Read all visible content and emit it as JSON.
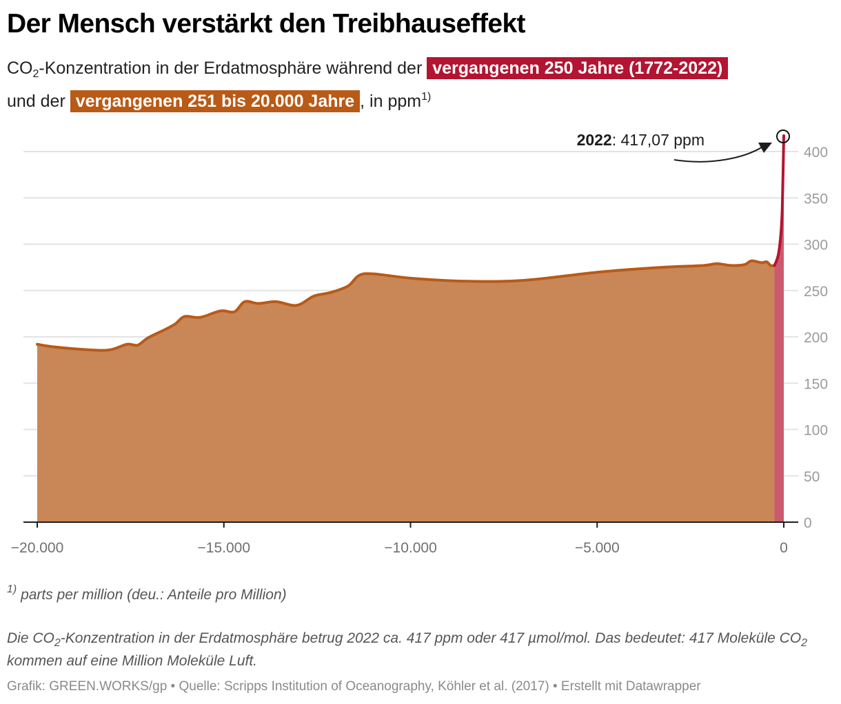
{
  "header": {
    "title": "Der Mensch verstärkt den Treibhauseffekt",
    "subtitle_line1_prefix": "CO",
    "subtitle_line1_sub": "2",
    "subtitle_line1_middle": "-Konzentration in der Erdatmosphäre während der ",
    "subtitle_highlight_red": "vergangenen 250 Jahre (1772-2022)",
    "subtitle_line2_prefix": "und der ",
    "subtitle_highlight_orange": "vergangenen 251 bis 20.000 Jahre",
    "subtitle_line2_suffix": ", in ppm",
    "subtitle_line2_sup": "1)"
  },
  "colors": {
    "recent_line": "#b31432",
    "recent_fill": "#cc5a6e",
    "historic_line": "#b95a17",
    "historic_fill": "#c98757",
    "grid": "#e3e3e3",
    "axis": "#1d1d1d"
  },
  "annotation": {
    "year": "2022",
    "text": ": 417,07 ppm"
  },
  "axes": {
    "y_ticks": [
      "0",
      "50",
      "100",
      "150",
      "200",
      "250",
      "300",
      "350",
      "400"
    ],
    "x_ticks": [
      "−20.000",
      "−15.000",
      "−10.000",
      "−5.000",
      "0"
    ]
  },
  "chart_data": {
    "type": "area",
    "title": "Der Mensch verstärkt den Treibhauseffekt",
    "subtitle": "CO2-Konzentration in der Erdatmosphäre während der vergangenen 250 Jahre (1772-2022) und der vergangenen 251 bis 20.000 Jahre, in ppm",
    "xlabel": "",
    "ylabel": "ppm",
    "xlim": [
      -20000,
      0
    ],
    "ylim": [
      0,
      420
    ],
    "grid": true,
    "legend_position": "in subtitle (colored highlights)",
    "x_ticks": [
      -20000,
      -15000,
      -10000,
      -5000,
      0
    ],
    "y_ticks": [
      0,
      50,
      100,
      150,
      200,
      250,
      300,
      350,
      400
    ],
    "series": [
      {
        "name": "vergangenen 251 bis 20.000 Jahre",
        "color": "#b95a17",
        "x": [
          -20000,
          -19520,
          -18600,
          -18050,
          -17590,
          -17310,
          -17030,
          -16570,
          -16300,
          -16050,
          -15640,
          -15090,
          -14720,
          -14440,
          -14070,
          -13610,
          -13050,
          -12590,
          -12130,
          -11670,
          -11390,
          -11020,
          -9910,
          -8440,
          -6960,
          -4930,
          -3270,
          -2160,
          -1790,
          -1420,
          -1050,
          -870,
          -590,
          -460,
          -350,
          -250
        ],
        "values": [
          192,
          189,
          186,
          186,
          192,
          191,
          199,
          208,
          214,
          222,
          221,
          228,
          227,
          238,
          236,
          238,
          234,
          244,
          248,
          255,
          266,
          268,
          263,
          260,
          261,
          270,
          275,
          277,
          279,
          277,
          278,
          282,
          280,
          281,
          277,
          277
        ]
      },
      {
        "name": "vergangenen 250 Jahre (1772-2022)",
        "color": "#b31432",
        "x": [
          -250,
          -150,
          -80,
          -40,
          0
        ],
        "values": [
          277,
          288,
          310,
          340,
          417.07
        ]
      }
    ],
    "annotations": [
      {
        "x": 0,
        "y": 417.07,
        "text": "2022: 417,07 ppm"
      }
    ]
  },
  "footer": {
    "footnote_sup": "1)",
    "footnote_text": " parts per million (deu.: Anteile pro Million)",
    "note_part1": "Die CO",
    "note_sub1": "2",
    "note_part2": "-Konzentration in der Erdatmosphäre betrug 2022 ca. 417 ppm oder 417 µmol/mol. Das bedeutet: 417 Moleküle CO",
    "note_sub2": "2",
    "note_part3": " kommen auf eine Million Moleküle Luft.",
    "credits": "Grafik: GREEN.WORKS/gp • Quelle: Scripps Institution of Oceanography, Köhler et al. (2017) • Erstellt mit Datawrapper"
  }
}
